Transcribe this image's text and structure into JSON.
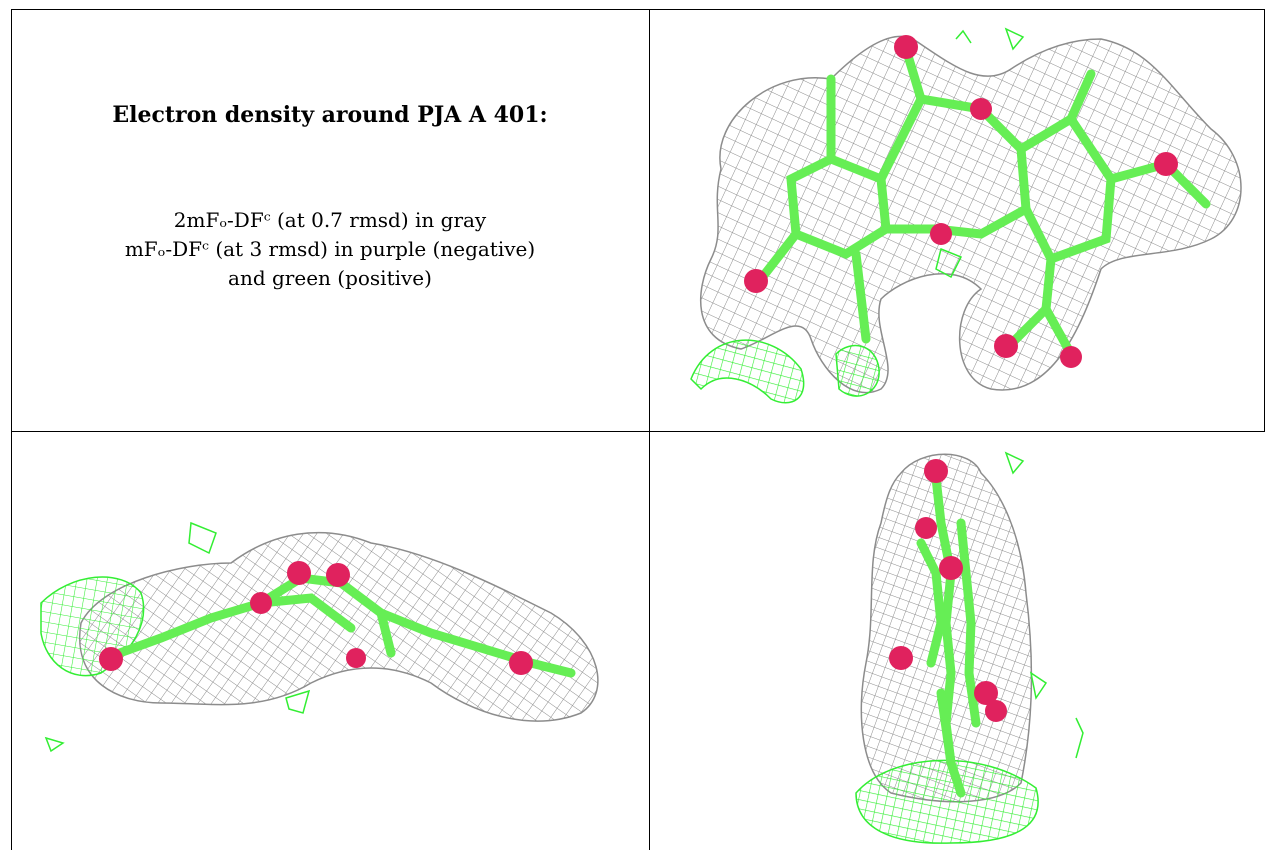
{
  "caption": {
    "title": "Electron density around PJA A 401:",
    "legend_line1": "2mFₒ-DFᶜ (at 0.7 rmsd) in gray",
    "legend_line2": "mFₒ-DFᶜ (at 3 rmsd) in purple (negative)",
    "legend_line3": "and green (positive)"
  },
  "colors": {
    "mesh_gray": "#8c8c8c",
    "positive_green": "#33ee33",
    "bond_green": "#66ee55",
    "oxygen_pink": "#e0225e"
  },
  "panels": [
    {
      "view": "front"
    },
    {
      "view": "side"
    },
    {
      "view": "edge"
    }
  ]
}
